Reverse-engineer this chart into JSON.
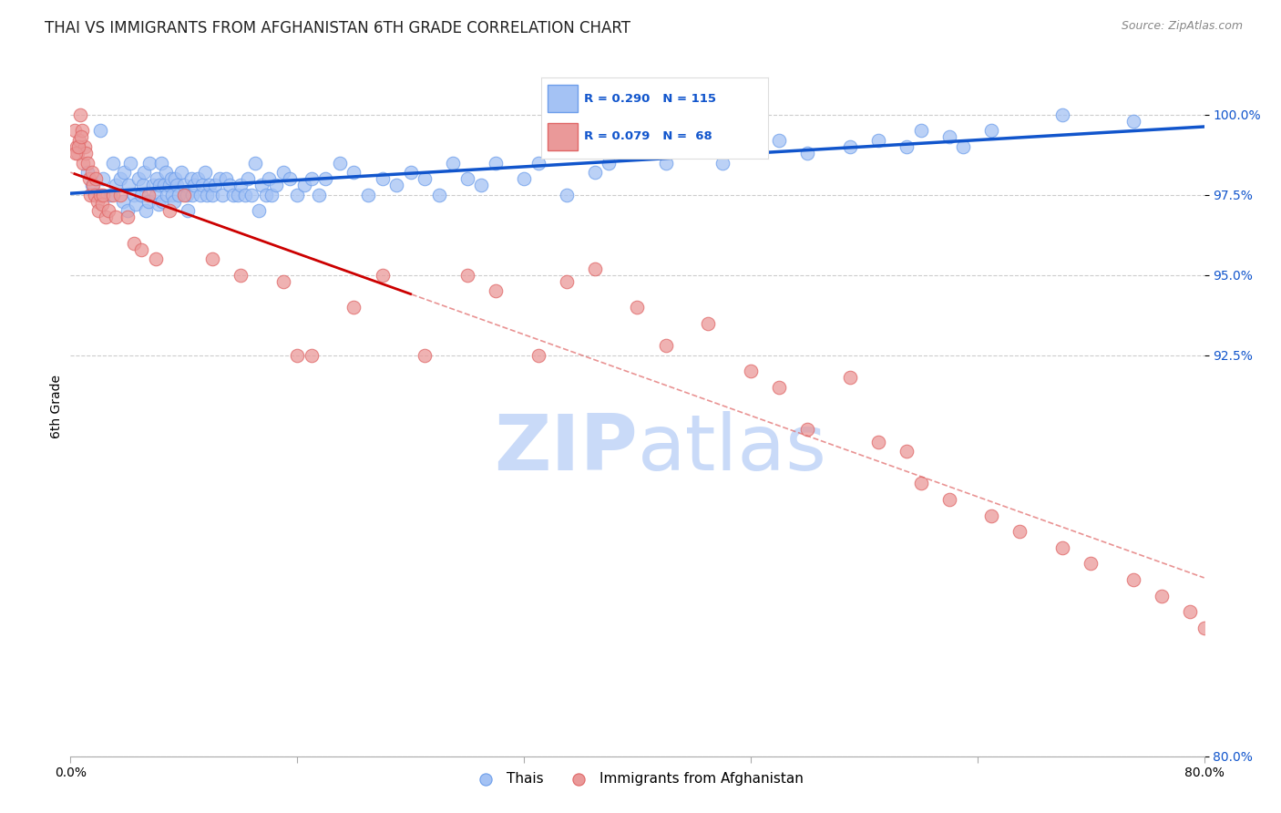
{
  "title": "THAI VS IMMIGRANTS FROM AFGHANISTAN 6TH GRADE CORRELATION CHART",
  "source": "Source: ZipAtlas.com",
  "ylabel": "6th Grade",
  "ytick_values": [
    80.0,
    92.5,
    95.0,
    97.5,
    100.0
  ],
  "xtick_values": [
    0.0,
    16.0,
    32.0,
    48.0,
    64.0,
    80.0
  ],
  "xlim": [
    0.0,
    80.0
  ],
  "ylim": [
    80.0,
    101.8
  ],
  "legend_label_blue": "Thais",
  "legend_label_pink": "Immigrants from Afghanistan",
  "blue_color": "#a4c2f4",
  "blue_edge_color": "#6d9eeb",
  "pink_color": "#ea9999",
  "pink_edge_color": "#e06666",
  "trend_blue_color": "#1155cc",
  "trend_pink_color": "#cc0000",
  "trend_pink_dash_color": "#e06666",
  "watermark_zip_color": "#c9daf8",
  "watermark_atlas_color": "#c9daf8",
  "title_fontsize": 12,
  "tick_fontsize": 10,
  "blue_points_x": [
    1.2,
    1.5,
    2.1,
    2.3,
    2.8,
    3.0,
    3.2,
    3.5,
    3.7,
    3.8,
    4.0,
    4.1,
    4.2,
    4.5,
    4.6,
    4.8,
    5.0,
    5.1,
    5.2,
    5.3,
    5.5,
    5.6,
    5.8,
    6.0,
    6.1,
    6.2,
    6.3,
    6.4,
    6.5,
    6.6,
    6.7,
    6.8,
    7.0,
    7.1,
    7.2,
    7.3,
    7.4,
    7.5,
    7.6,
    7.8,
    8.0,
    8.2,
    8.3,
    8.5,
    8.6,
    8.7,
    9.0,
    9.2,
    9.3,
    9.5,
    9.6,
    9.8,
    10.0,
    10.2,
    10.5,
    10.7,
    11.0,
    11.2,
    11.5,
    11.8,
    12.0,
    12.3,
    12.5,
    12.8,
    13.0,
    13.3,
    13.5,
    13.8,
    14.0,
    14.2,
    14.5,
    15.0,
    15.5,
    16.0,
    16.5,
    17.0,
    17.5,
    18.0,
    19.0,
    20.0,
    21.0,
    22.0,
    23.0,
    24.0,
    25.0,
    26.0,
    27.0,
    28.0,
    29.0,
    30.0,
    32.0,
    33.0,
    35.0,
    37.0,
    38.0,
    40.0,
    42.0,
    44.0,
    46.0,
    48.0,
    50.0,
    52.0,
    55.0,
    57.0,
    59.0,
    60.0,
    62.0,
    63.0,
    65.0,
    70.0,
    75.0
  ],
  "blue_points_y": [
    98.2,
    97.8,
    99.5,
    98.0,
    97.5,
    98.5,
    97.8,
    98.0,
    97.3,
    98.2,
    97.0,
    97.8,
    98.5,
    97.5,
    97.2,
    98.0,
    97.5,
    97.8,
    98.2,
    97.0,
    97.3,
    98.5,
    97.8,
    97.5,
    98.0,
    97.2,
    97.8,
    98.5,
    97.3,
    97.8,
    98.2,
    97.5,
    97.8,
    98.0,
    97.5,
    97.3,
    98.0,
    97.8,
    97.5,
    98.2,
    97.8,
    97.5,
    97.0,
    98.0,
    97.5,
    97.8,
    98.0,
    97.5,
    97.8,
    98.2,
    97.5,
    97.8,
    97.5,
    97.8,
    98.0,
    97.5,
    98.0,
    97.8,
    97.5,
    97.5,
    97.8,
    97.5,
    98.0,
    97.5,
    98.5,
    97.0,
    97.8,
    97.5,
    98.0,
    97.5,
    97.8,
    98.2,
    98.0,
    97.5,
    97.8,
    98.0,
    97.5,
    98.0,
    98.5,
    98.2,
    97.5,
    98.0,
    97.8,
    98.2,
    98.0,
    97.5,
    98.5,
    98.0,
    97.8,
    98.5,
    98.0,
    98.5,
    97.5,
    98.2,
    98.5,
    98.8,
    98.5,
    99.0,
    98.5,
    99.0,
    99.2,
    98.8,
    99.0,
    99.2,
    99.0,
    99.5,
    99.3,
    99.0,
    99.5,
    100.0,
    99.8
  ],
  "pink_points_x": [
    0.3,
    0.4,
    0.5,
    0.6,
    0.7,
    0.8,
    0.9,
    1.0,
    1.1,
    1.2,
    1.3,
    1.4,
    1.5,
    1.6,
    1.7,
    1.8,
    1.9,
    2.0,
    2.1,
    2.2,
    2.3,
    2.5,
    2.7,
    3.0,
    3.2,
    3.5,
    4.0,
    4.5,
    5.0,
    5.5,
    6.0,
    7.0,
    8.0,
    10.0,
    12.0,
    15.0,
    16.0,
    17.0,
    20.0,
    22.0,
    25.0,
    28.0,
    30.0,
    33.0,
    35.0,
    37.0,
    40.0,
    42.0,
    45.0,
    48.0,
    50.0,
    52.0,
    55.0,
    57.0,
    59.0,
    60.0,
    62.0,
    65.0,
    67.0,
    70.0,
    72.0,
    75.0,
    77.0,
    79.0,
    80.0,
    0.35,
    0.55,
    0.75
  ],
  "pink_points_y": [
    99.5,
    99.0,
    98.8,
    99.2,
    100.0,
    99.5,
    98.5,
    99.0,
    98.8,
    98.5,
    98.0,
    97.5,
    98.2,
    97.8,
    97.5,
    98.0,
    97.3,
    97.0,
    97.5,
    97.2,
    97.5,
    96.8,
    97.0,
    97.5,
    96.8,
    97.5,
    96.8,
    96.0,
    95.8,
    97.5,
    95.5,
    97.0,
    97.5,
    95.5,
    95.0,
    94.8,
    92.5,
    92.5,
    94.0,
    95.0,
    92.5,
    95.0,
    94.5,
    92.5,
    94.8,
    95.2,
    94.0,
    92.8,
    93.5,
    92.0,
    91.5,
    90.2,
    91.8,
    89.8,
    89.5,
    88.5,
    88.0,
    87.5,
    87.0,
    86.5,
    86.0,
    85.5,
    85.0,
    84.5,
    84.0,
    98.8,
    99.0,
    99.3
  ]
}
